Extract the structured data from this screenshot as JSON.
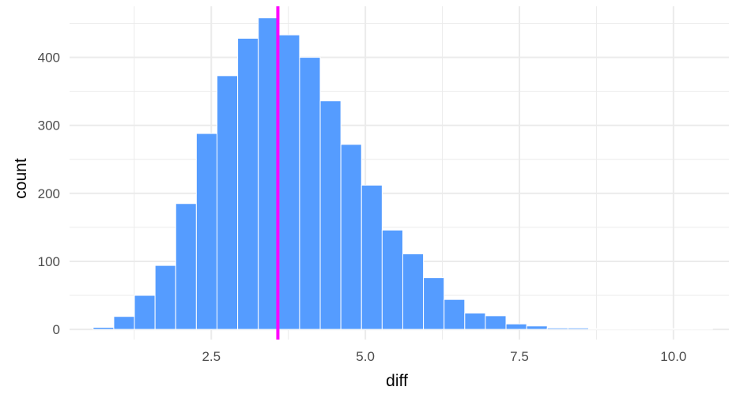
{
  "chart_data": {
    "type": "bar",
    "subtype": "histogram",
    "xlabel": "diff",
    "ylabel": "count",
    "xlim": [
      0.2,
      10.9
    ],
    "ylim": [
      -15,
      475
    ],
    "xticks": [
      2.5,
      5.0,
      7.5,
      10.0
    ],
    "xtick_labels": [
      "2.5",
      "5.0",
      "7.5",
      "10.0"
    ],
    "yticks": [
      0,
      100,
      200,
      300,
      400
    ],
    "ytick_labels": [
      "0",
      "100",
      "200",
      "300",
      "400"
    ],
    "grid": true,
    "bin_width": 0.335,
    "bins": [
      {
        "x": 0.75,
        "count": 3
      },
      {
        "x": 1.085,
        "count": 19
      },
      {
        "x": 1.42,
        "count": 50
      },
      {
        "x": 1.755,
        "count": 94
      },
      {
        "x": 2.09,
        "count": 185
      },
      {
        "x": 2.425,
        "count": 288
      },
      {
        "x": 2.76,
        "count": 373
      },
      {
        "x": 3.095,
        "count": 428
      },
      {
        "x": 3.43,
        "count": 458
      },
      {
        "x": 3.765,
        "count": 433
      },
      {
        "x": 4.1,
        "count": 400
      },
      {
        "x": 4.435,
        "count": 336
      },
      {
        "x": 4.77,
        "count": 272
      },
      {
        "x": 5.105,
        "count": 212
      },
      {
        "x": 5.44,
        "count": 146
      },
      {
        "x": 5.775,
        "count": 111
      },
      {
        "x": 6.11,
        "count": 76
      },
      {
        "x": 6.445,
        "count": 44
      },
      {
        "x": 6.78,
        "count": 24
      },
      {
        "x": 7.115,
        "count": 20
      },
      {
        "x": 7.45,
        "count": 8
      },
      {
        "x": 7.785,
        "count": 5
      },
      {
        "x": 8.12,
        "count": 2
      },
      {
        "x": 8.455,
        "count": 2
      },
      {
        "x": 8.79,
        "count": 1
      },
      {
        "x": 9.125,
        "count": 1
      },
      {
        "x": 9.46,
        "count": 1
      },
      {
        "x": 9.795,
        "count": 1
      },
      {
        "x": 10.13,
        "count": 1
      },
      {
        "x": 10.465,
        "count": 1
      }
    ],
    "vline": {
      "x": 3.58,
      "color": "#ff00ff"
    },
    "bar_fill": "#559cff",
    "bar_outline": "#ffffff",
    "grid_color": "#ebebeb"
  }
}
